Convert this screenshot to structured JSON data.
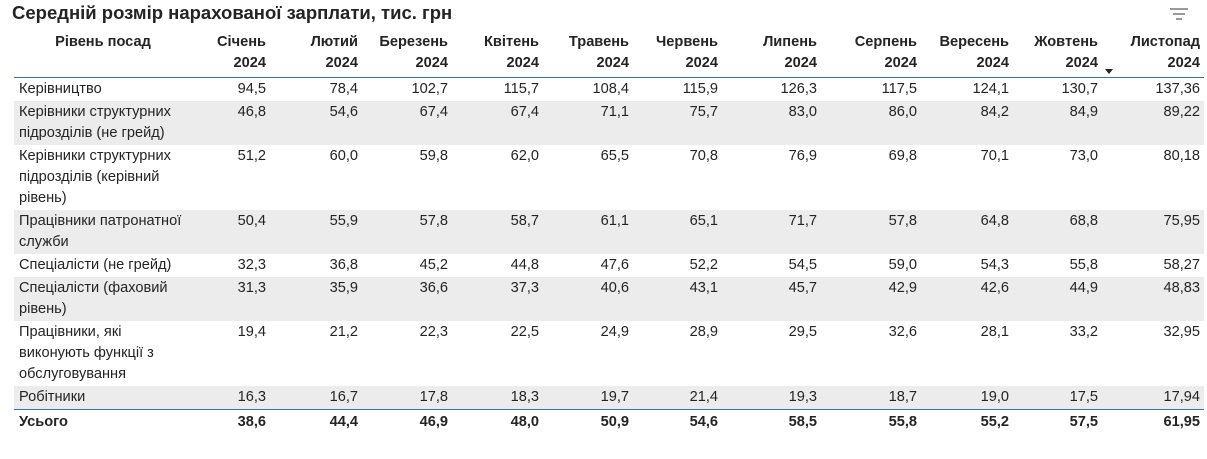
{
  "title": "Середній розмір нарахованої зарплати, тис. грн",
  "icons": {
    "filter": "filter-lines-icon",
    "sort": "sort-descending-icon"
  },
  "colors": {
    "accent_line": "#2e75b6",
    "row_alt": "#ececec"
  },
  "table": {
    "columns": [
      "Рівень посад",
      "Січень\n2024",
      "Лютий\n2024",
      "Березень\n2024",
      "Квітень\n2024",
      "Травень\n2024",
      "Червень\n2024",
      "Липень\n2024",
      "Серпень\n2024",
      "Вересень\n2024",
      "Жовтень\n2024",
      "Листопад\n2024"
    ],
    "sorted_column": "Листопад\n2024",
    "rows": [
      {
        "name": "Керівництво",
        "values": [
          "94,5",
          "78,4",
          "102,7",
          "115,7",
          "108,4",
          "115,9",
          "126,3",
          "117,5",
          "124,1",
          "130,7",
          "137,36"
        ]
      },
      {
        "name": "Керівники структурних підрозділів (не грейд)",
        "values": [
          "46,8",
          "54,6",
          "67,4",
          "67,4",
          "71,1",
          "75,7",
          "83,0",
          "86,0",
          "84,2",
          "84,9",
          "89,22"
        ]
      },
      {
        "name": "Керівники структурних підрозділів (керівний рівень)",
        "values": [
          "51,2",
          "60,0",
          "59,8",
          "62,0",
          "65,5",
          "70,8",
          "76,9",
          "69,8",
          "70,1",
          "73,0",
          "80,18"
        ]
      },
      {
        "name": "Працівники патронатної служби",
        "values": [
          "50,4",
          "55,9",
          "57,8",
          "58,7",
          "61,1",
          "65,1",
          "71,7",
          "57,8",
          "64,8",
          "68,8",
          "75,95"
        ]
      },
      {
        "name": "Спеціалісти (не грейд)",
        "values": [
          "32,3",
          "36,8",
          "45,2",
          "44,8",
          "47,6",
          "52,2",
          "54,5",
          "59,0",
          "54,3",
          "55,8",
          "58,27"
        ]
      },
      {
        "name": "Спеціалісти (фаховий рівень)",
        "values": [
          "31,3",
          "35,9",
          "36,6",
          "37,3",
          "40,6",
          "43,1",
          "45,7",
          "42,9",
          "42,6",
          "44,9",
          "48,83"
        ]
      },
      {
        "name": "Працівники, які виконують функції з обслуговування",
        "values": [
          "19,4",
          "21,2",
          "22,3",
          "22,5",
          "24,9",
          "28,9",
          "29,5",
          "32,6",
          "28,1",
          "33,2",
          "32,95"
        ]
      },
      {
        "name": "Робітники",
        "values": [
          "16,3",
          "16,7",
          "17,8",
          "18,3",
          "19,7",
          "21,4",
          "19,3",
          "18,7",
          "19,0",
          "17,5",
          "17,94"
        ]
      }
    ],
    "total": {
      "name": "Усього",
      "values": [
        "38,6",
        "44,4",
        "46,9",
        "48,0",
        "50,9",
        "54,6",
        "58,5",
        "55,8",
        "55,2",
        "57,5",
        "61,95"
      ]
    }
  }
}
